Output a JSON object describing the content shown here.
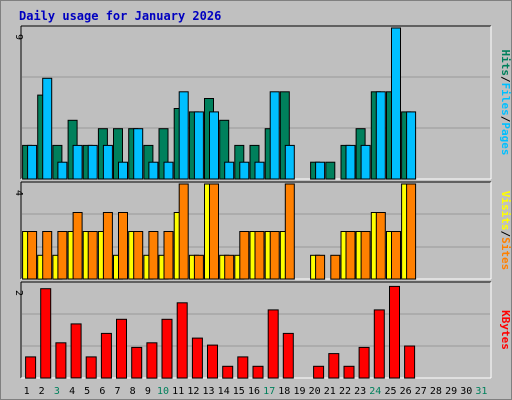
{
  "title": "Daily usage for January 2026",
  "colors": {
    "background": "#c0c0c0",
    "plot_background": "#bfbfbf",
    "grid": "#999999",
    "title": "#0000c0",
    "hits": "#00805c",
    "files": "#00bfff",
    "pages": "#00bfff",
    "visits": "#ffff00",
    "sites": "#ff8000",
    "kbytes": "#ff0000",
    "weekend_day": "#00805c",
    "weekday": "#000000"
  },
  "chart_data": [
    {
      "type": "bar",
      "panel": "hits-files-pages",
      "categories": [
        "1",
        "2",
        "3",
        "4",
        "5",
        "6",
        "7",
        "8",
        "9",
        "10",
        "11",
        "12",
        "13",
        "14",
        "15",
        "16",
        "17",
        "18",
        "19",
        "20",
        "21",
        "22",
        "23",
        "24",
        "25",
        "26",
        "27",
        "28",
        "29",
        "30",
        "31"
      ],
      "ylim": [
        0,
        9
      ],
      "y_tick_label": "9",
      "legend_labels": [
        "Pages",
        "/",
        "Files",
        "/",
        "Hits"
      ],
      "series": [
        {
          "name": "Hits",
          "color": "#00805c",
          "values": [
            2,
            5,
            2,
            3.5,
            2,
            3,
            3,
            3,
            2,
            3,
            4.2,
            4,
            4.8,
            3.5,
            2,
            2,
            3,
            5.2,
            0,
            1,
            1,
            2,
            3,
            5.2,
            5.2,
            4,
            0,
            0,
            0,
            0,
            0
          ]
        },
        {
          "name": "Files",
          "color": "#00bfff",
          "values": [
            2,
            6,
            1,
            2,
            2,
            2,
            1,
            3,
            1,
            1,
            5.2,
            4,
            4,
            1,
            1,
            1,
            5.2,
            2,
            0,
            1,
            0,
            2,
            2,
            5.2,
            9,
            4,
            0,
            0,
            0,
            0,
            0
          ]
        }
      ]
    },
    {
      "type": "bar",
      "panel": "visits-sites",
      "categories": [
        "1",
        "2",
        "3",
        "4",
        "5",
        "6",
        "7",
        "8",
        "9",
        "10",
        "11",
        "12",
        "13",
        "14",
        "15",
        "16",
        "17",
        "18",
        "19",
        "20",
        "21",
        "22",
        "23",
        "24",
        "25",
        "26",
        "27",
        "28",
        "29",
        "30",
        "31"
      ],
      "ylim": [
        0,
        4
      ],
      "y_tick_label": "4",
      "legend_labels": [
        "Sites",
        "/",
        "Visits"
      ],
      "series": [
        {
          "name": "Visits",
          "color": "#ffff00",
          "values": [
            2,
            1,
            1,
            2,
            2,
            2,
            1,
            2,
            1,
            1,
            2.8,
            1,
            4,
            1,
            1,
            2,
            2,
            2,
            0,
            1,
            0,
            2,
            2,
            2.8,
            2,
            4,
            0,
            0,
            0,
            0,
            0
          ]
        },
        {
          "name": "Sites",
          "color": "#ff8000",
          "values": [
            2,
            2,
            2,
            2.8,
            2,
            2.8,
            2.8,
            2,
            2,
            2,
            4,
            1,
            4,
            1,
            2,
            2,
            2,
            4,
            0,
            1,
            1,
            2,
            2,
            2.8,
            2,
            4,
            0,
            0,
            0,
            0,
            0
          ]
        }
      ]
    },
    {
      "type": "bar",
      "panel": "kbytes",
      "categories": [
        "1",
        "2",
        "3",
        "4",
        "5",
        "6",
        "7",
        "8",
        "9",
        "10",
        "11",
        "12",
        "13",
        "14",
        "15",
        "16",
        "17",
        "18",
        "19",
        "20",
        "21",
        "22",
        "23",
        "24",
        "25",
        "26",
        "27",
        "28",
        "29",
        "30",
        "31"
      ],
      "ylim": [
        0,
        2
      ],
      "y_tick_label": "2",
      "legend_labels": [
        "KBytes"
      ],
      "series": [
        {
          "name": "KBytes",
          "color": "#ff0000",
          "values": [
            0.45,
            1.9,
            0.75,
            1.15,
            0.45,
            0.95,
            1.25,
            0.65,
            0.75,
            1.25,
            1.6,
            0.85,
            0.7,
            0.25,
            0.45,
            0.25,
            1.45,
            0.95,
            0,
            0.25,
            0.52,
            0.25,
            0.65,
            1.45,
            1.95,
            0.68,
            0,
            0,
            0,
            0,
            0
          ]
        }
      ]
    }
  ]
}
